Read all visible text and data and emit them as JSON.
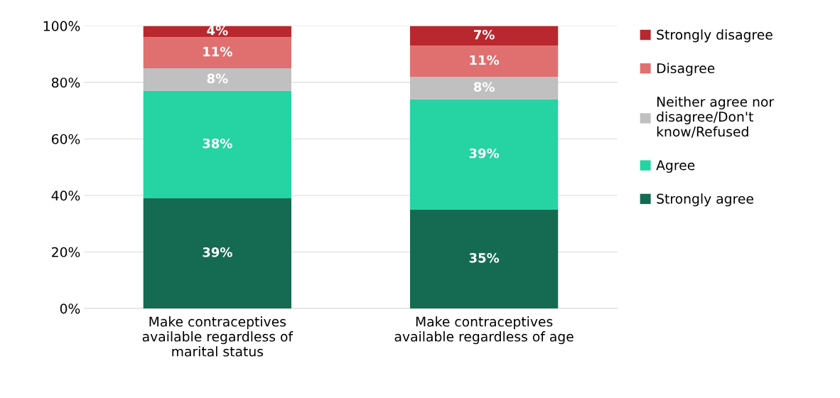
{
  "chart_data": {
    "type": "bar",
    "stacked": true,
    "categories": [
      "Make contraceptives\navailable regardless of\nmarital status",
      "Make contraceptives\navailable regardless of age"
    ],
    "series": [
      {
        "name": "Strongly agree",
        "color": "#156a52",
        "values": [
          39,
          35
        ],
        "value_labels": [
          "39%",
          "35%"
        ]
      },
      {
        "name": "Agree",
        "color": "#26d3a2",
        "values": [
          38,
          39
        ],
        "value_labels": [
          "38%",
          "39%"
        ]
      },
      {
        "name": "Neither agree nor\ndisagree/Don't\nknow/Refused",
        "color": "#c0c0c0",
        "values": [
          8,
          8
        ],
        "value_labels": [
          "8%",
          "8%"
        ]
      },
      {
        "name": "Disagree",
        "color": "#e07070",
        "values": [
          11,
          11
        ],
        "value_labels": [
          "11%",
          "11%"
        ]
      },
      {
        "name": "Strongly disagree",
        "color": "#b8282e",
        "values": [
          4,
          7
        ],
        "value_labels": [
          "4%",
          "7%"
        ]
      }
    ],
    "ylim": [
      0,
      100
    ],
    "yticks": [
      {
        "value": 0,
        "label": "0%"
      },
      {
        "value": 20,
        "label": "20%"
      },
      {
        "value": 40,
        "label": "40%"
      },
      {
        "value": 60,
        "label": "60%"
      },
      {
        "value": 80,
        "label": "80%"
      },
      {
        "value": 100,
        "label": "100%"
      }
    ],
    "grid": "y",
    "legend": "right"
  }
}
